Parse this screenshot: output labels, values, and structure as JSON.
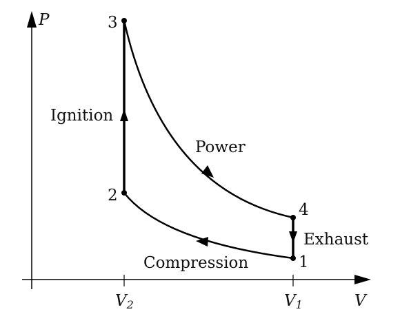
{
  "axes": {
    "x_label": "V",
    "y_label": "P",
    "ticks": [
      {
        "main": "V",
        "sub": "2"
      },
      {
        "main": "V",
        "sub": "1"
      }
    ]
  },
  "states": [
    "1",
    "2",
    "3",
    "4"
  ],
  "processes": {
    "compression": "Compression",
    "ignition": "Ignition",
    "power": "Power",
    "exhaust": "Exhaust"
  },
  "colors": {
    "line": "#000000",
    "text": "#111111"
  }
}
